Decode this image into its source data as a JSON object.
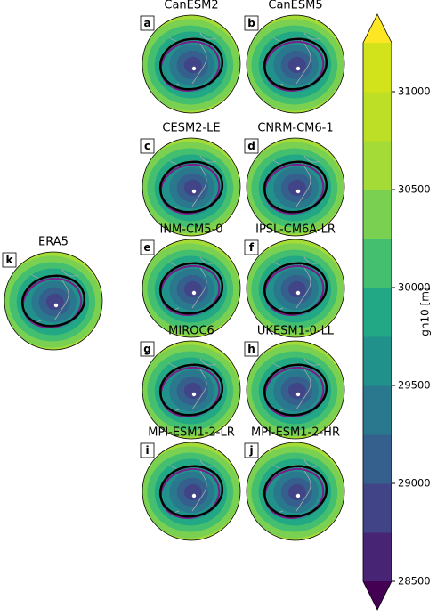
{
  "panels": [
    {
      "letter": "a",
      "title": "CanESM2"
    },
    {
      "letter": "b",
      "title": "CanESM5"
    },
    {
      "letter": "c",
      "title": "CESM2-LE"
    },
    {
      "letter": "d",
      "title": "CNRM-CM6-1"
    },
    {
      "letter": "e",
      "title": "INM-CM5-0"
    },
    {
      "letter": "f",
      "title": "IPSL-CM6A-LR"
    },
    {
      "letter": "g",
      "title": "MIROC6"
    },
    {
      "letter": "h",
      "title": "UKESM1-0-LL"
    },
    {
      "letter": "i",
      "title": "MPI-ESM1-2-LR"
    },
    {
      "letter": "j",
      "title": "MPI-ESM1-2-HR"
    },
    {
      "letter": "k",
      "title": "ERA5"
    }
  ],
  "colorbar": {
    "label": "gh10 [m]",
    "ticks": [
      28500,
      29000,
      29500,
      30000,
      30500,
      31000
    ],
    "levels": [
      28500,
      28750,
      29000,
      29250,
      29500,
      29750,
      30000,
      30250,
      30500,
      30750,
      31000,
      31250
    ],
    "colors": [
      "#440154",
      "#482475",
      "#414487",
      "#355f8d",
      "#2a788e",
      "#21918c",
      "#22a884",
      "#44bf70",
      "#7ad151",
      "#a5db36",
      "#bddf26",
      "#d2e21b",
      "#fde725"
    ]
  }
}
